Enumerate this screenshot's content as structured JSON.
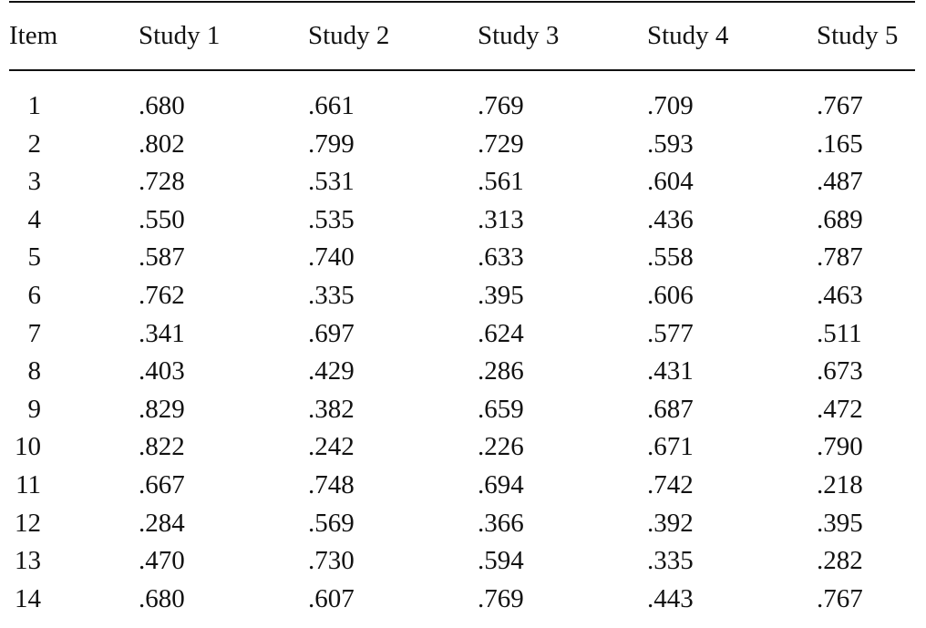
{
  "table": {
    "header": [
      "Item",
      "Study 1",
      "Study 2",
      "Study 3",
      "Study 4",
      "Study 5"
    ],
    "rows": [
      [
        "1",
        ".680",
        ".661",
        ".769",
        ".709",
        ".767"
      ],
      [
        "2",
        ".802",
        ".799",
        ".729",
        ".593",
        ".165"
      ],
      [
        "3",
        ".728",
        ".531",
        ".561",
        ".604",
        ".487"
      ],
      [
        "4",
        ".550",
        ".535",
        ".313",
        ".436",
        ".689"
      ],
      [
        "5",
        ".587",
        ".740",
        ".633",
        ".558",
        ".787"
      ],
      [
        "6",
        ".762",
        ".335",
        ".395",
        ".606",
        ".463"
      ],
      [
        "7",
        ".341",
        ".697",
        ".624",
        ".577",
        ".511"
      ],
      [
        "8",
        ".403",
        ".429",
        ".286",
        ".431",
        ".673"
      ],
      [
        "9",
        ".829",
        ".382",
        ".659",
        ".687",
        ".472"
      ],
      [
        "10",
        ".822",
        ".242",
        ".226",
        ".671",
        ".790"
      ],
      [
        "11",
        ".667",
        ".748",
        ".694",
        ".742",
        ".218"
      ],
      [
        "12",
        ".284",
        ".569",
        ".366",
        ".392",
        ".395"
      ],
      [
        "13",
        ".470",
        ".730",
        ".594",
        ".335",
        ".282"
      ],
      [
        "14",
        ".680",
        ".607",
        ".769",
        ".443",
        ".767"
      ]
    ]
  }
}
